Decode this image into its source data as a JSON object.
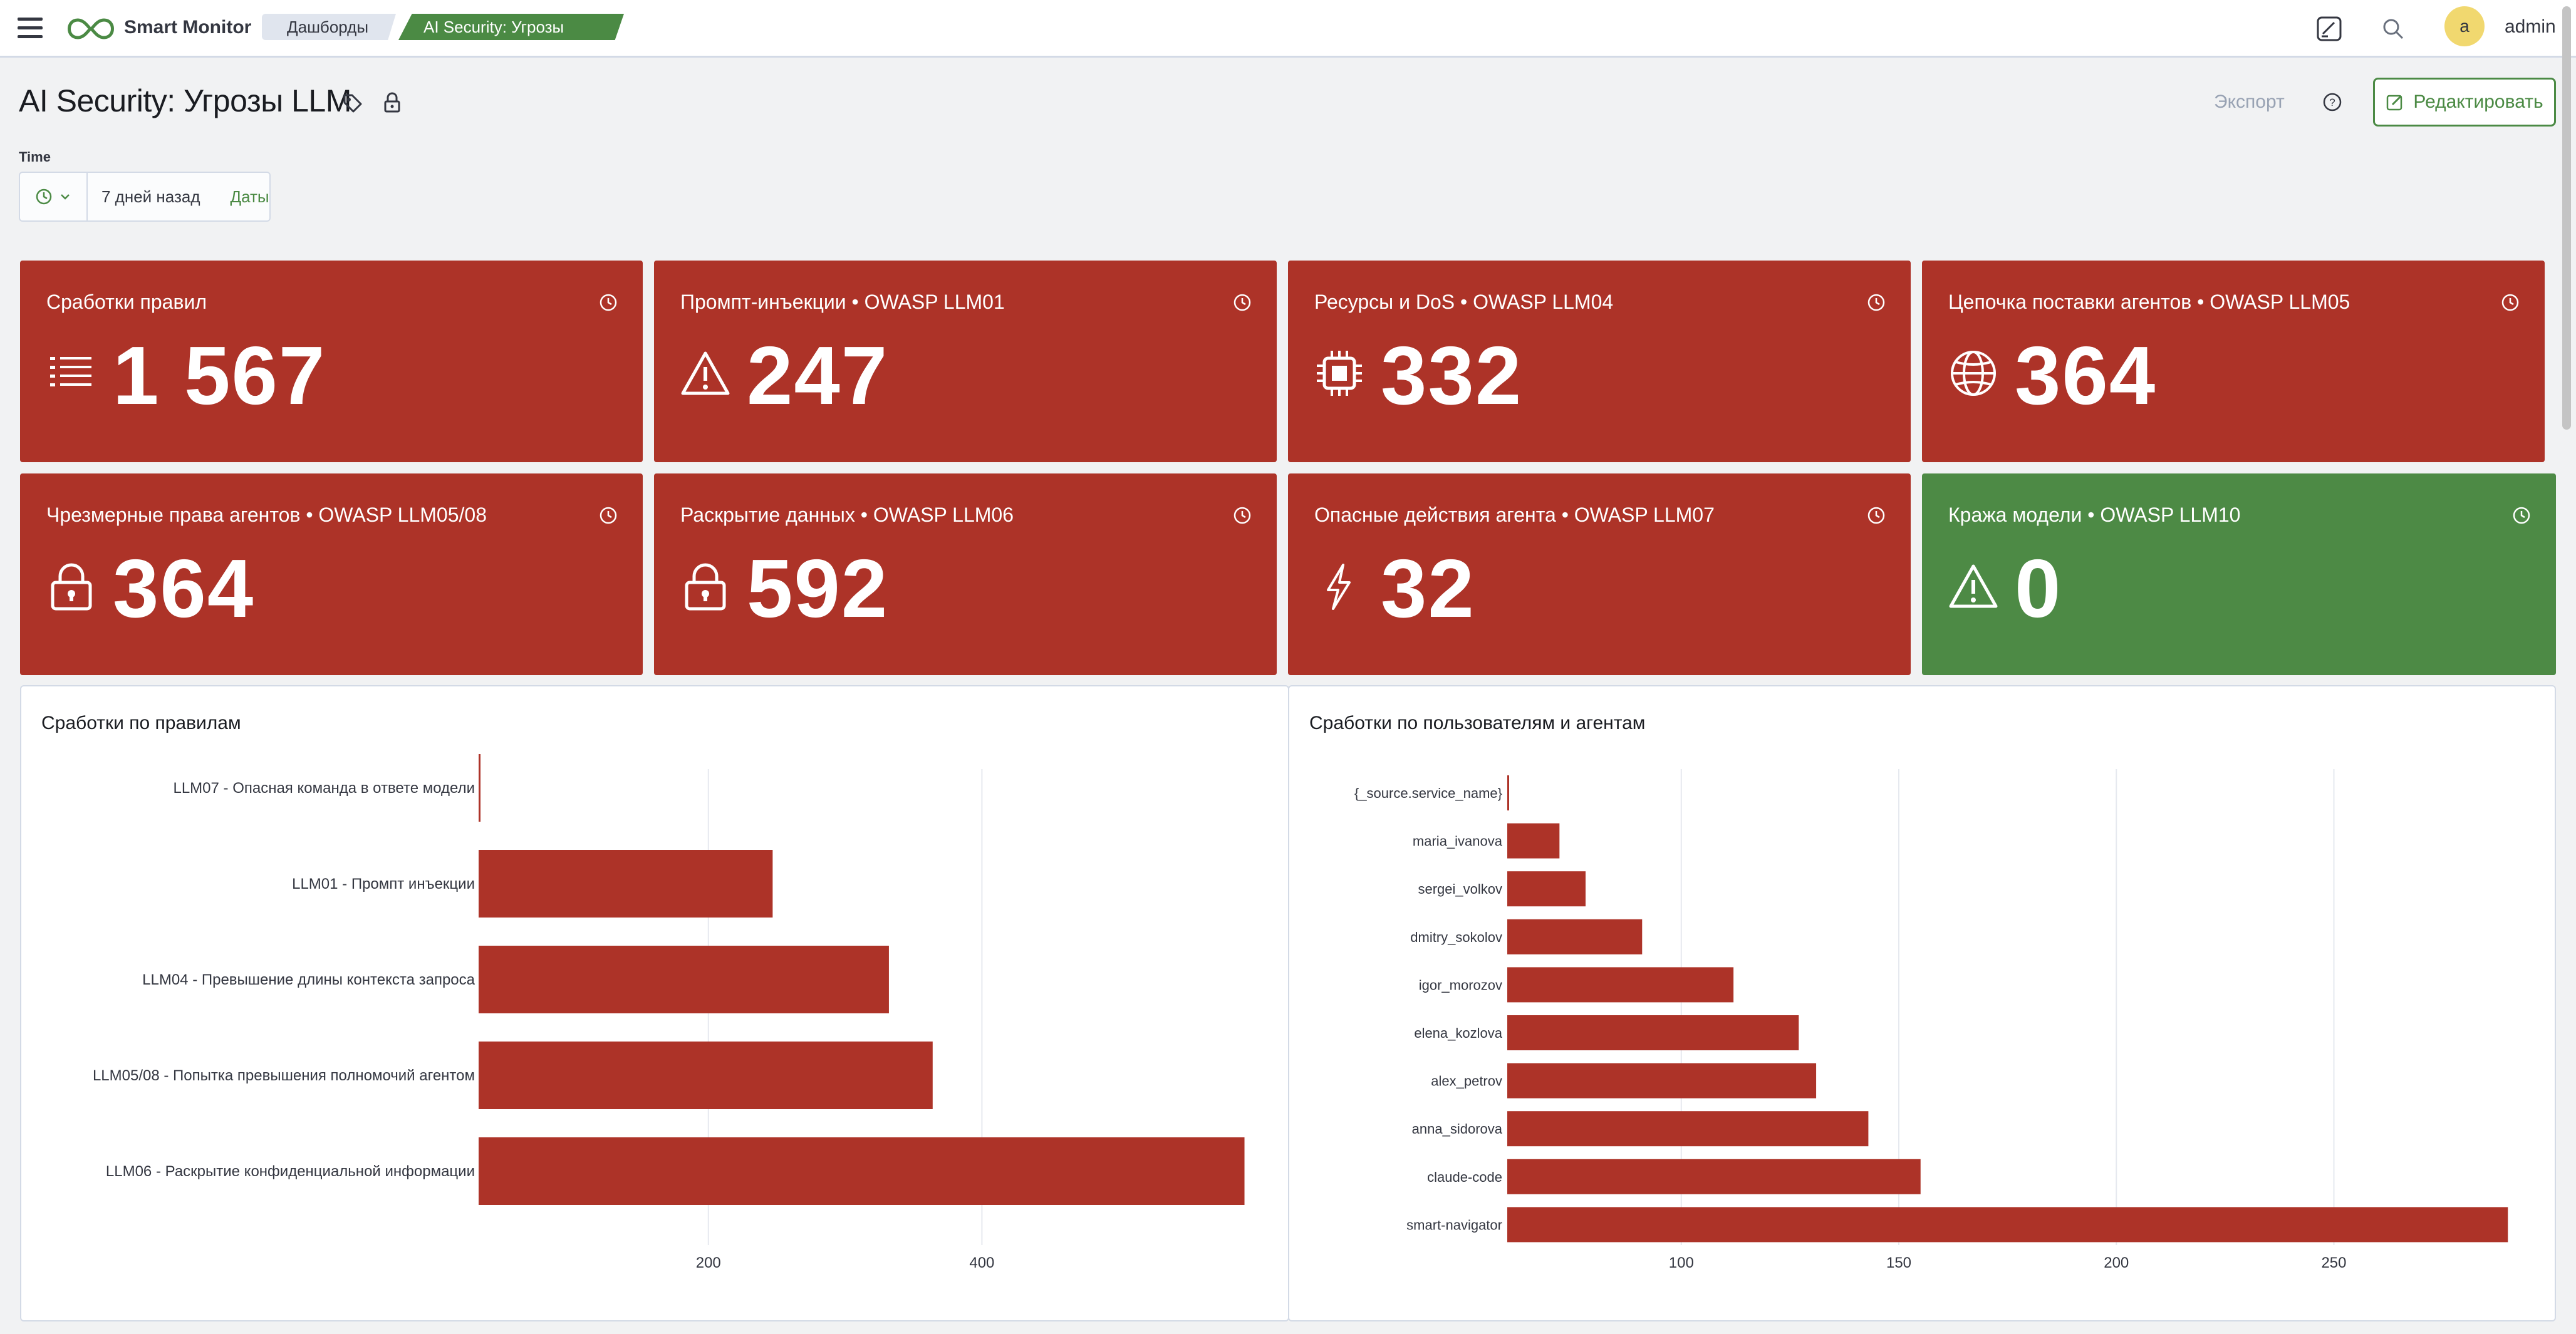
{
  "app": {
    "name": "Smart Monitor"
  },
  "breadcrumbs": [
    "Дашборды",
    "AI Security: Угрозы LLM"
  ],
  "user": {
    "initial": "a",
    "name": "admin"
  },
  "header": {
    "title": "AI Security: Угрозы LLM",
    "export_label": "Экспорт",
    "edit_label": "Редактировать"
  },
  "time": {
    "label": "Time",
    "value": "7 дней назад",
    "dates_label": "Даты"
  },
  "metrics": [
    {
      "title": "Сработки правил",
      "value": "1 567",
      "icon": "list-icon",
      "status": "red"
    },
    {
      "title": "Промпт-инъекции • OWASP LLM01",
      "value": "247",
      "icon": "warning-icon",
      "status": "red"
    },
    {
      "title": "Ресурсы и DoS • OWASP LLM04",
      "value": "332",
      "icon": "chip-icon",
      "status": "red"
    },
    {
      "title": "Цепочка поставки агентов • OWASP LLM05",
      "value": "364",
      "icon": "globe-icon",
      "status": "red"
    },
    {
      "title": "Чрезмерные права агентов • OWASP LLM05/08",
      "value": "364",
      "icon": "lock-icon",
      "status": "red"
    },
    {
      "title": "Раскрытие данных • OWASP LLM06",
      "value": "592",
      "icon": "lock-icon",
      "status": "red"
    },
    {
      "title": "Опасные действия агента • OWASP LLM07",
      "value": "32",
      "icon": "bolt-icon",
      "status": "red"
    },
    {
      "title": "Кража модели • OWASP LLM10",
      "value": "0",
      "icon": "warning-icon",
      "status": "green"
    }
  ],
  "colors": {
    "alert_red": "#ad3328",
    "ok_green": "#4d8a45",
    "accent_green": "#4b8a44",
    "bar_red": "#ad3328"
  },
  "chart_data": [
    {
      "type": "bar",
      "orientation": "horizontal",
      "title": "Сработки по правилам",
      "categories": [
        "LLM07 - Опасная команда в ответе модели",
        "LLM01 - Промпт инъекции",
        "LLM04 - Превышение длины контекста запроса",
        "LLM05/08 - Попытка превышения полномочий агентом",
        "LLM06 - Раскрытие конфиденциальной информации"
      ],
      "values": [
        32,
        247,
        332,
        364,
        592
      ],
      "xlim": [
        32,
        600
      ],
      "xticks": [
        200,
        400
      ],
      "grid": true
    },
    {
      "type": "bar",
      "orientation": "horizontal",
      "title": "Сработки по пользователям и агентам",
      "categories": [
        "{_source.service_name}",
        "maria_ivanova",
        "sergei_volkov",
        "dmitry_sokolov",
        "igor_morozov",
        "elena_kozlova",
        "alex_petrov",
        "anna_sidorova",
        "claude-code",
        "smart-navigator"
      ],
      "values": [
        60,
        72,
        78,
        91,
        112,
        127,
        131,
        143,
        155,
        290
      ],
      "xlim": [
        60,
        295
      ],
      "xticks": [
        100,
        150,
        200,
        250
      ],
      "grid": true
    }
  ]
}
